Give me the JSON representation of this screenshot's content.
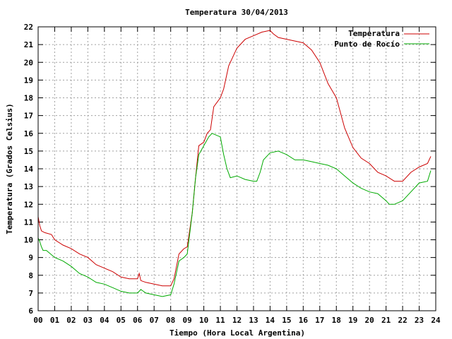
{
  "chart_data": {
    "type": "line",
    "title": "Temperatura 30/04/2013",
    "xlabel": "Tiempo (Hora Local Argentina)",
    "ylabel": "Temperatura (Grados Celsius)",
    "xlim": [
      0,
      24
    ],
    "ylim": [
      6,
      22
    ],
    "x_ticks": [
      "00",
      "01",
      "02",
      "03",
      "04",
      "05",
      "06",
      "07",
      "08",
      "09",
      "10",
      "11",
      "12",
      "13",
      "14",
      "15",
      "16",
      "17",
      "18",
      "19",
      "20",
      "21",
      "22",
      "23",
      "24"
    ],
    "y_ticks": [
      6,
      7,
      8,
      9,
      10,
      11,
      12,
      13,
      14,
      15,
      16,
      17,
      18,
      19,
      20,
      21,
      22
    ],
    "grid": true,
    "legend_position": "top-right",
    "series": [
      {
        "name": "Temperatura",
        "color": "#cc0000",
        "x": [
          0.0,
          0.1,
          0.2,
          0.4,
          0.8,
          1.0,
          1.5,
          2.0,
          2.5,
          3.0,
          3.5,
          4.0,
          4.5,
          5.0,
          5.5,
          6.0,
          6.1,
          6.2,
          6.5,
          7.0,
          7.5,
          8.0,
          8.2,
          8.5,
          8.8,
          9.0,
          9.3,
          9.5,
          9.7,
          10.0,
          10.2,
          10.4,
          10.6,
          11.0,
          11.2,
          11.5,
          12.0,
          12.5,
          13.0,
          13.5,
          14.0,
          14.2,
          14.5,
          15.0,
          15.5,
          16.0,
          16.5,
          17.0,
          17.5,
          18.0,
          18.5,
          19.0,
          19.5,
          20.0,
          20.5,
          21.0,
          21.5,
          22.0,
          22.5,
          23.0,
          23.5,
          23.7
        ],
        "y": [
          11.3,
          10.8,
          10.5,
          10.4,
          10.3,
          10.0,
          9.7,
          9.5,
          9.2,
          9.0,
          8.6,
          8.4,
          8.2,
          7.9,
          7.8,
          7.8,
          8.1,
          7.7,
          7.6,
          7.5,
          7.4,
          7.4,
          7.8,
          9.2,
          9.5,
          9.6,
          11.5,
          13.5,
          15.3,
          15.5,
          16.0,
          16.2,
          17.5,
          18.0,
          18.5,
          19.8,
          20.8,
          21.3,
          21.5,
          21.7,
          21.8,
          21.6,
          21.4,
          21.3,
          21.2,
          21.1,
          20.7,
          20.0,
          18.8,
          18.0,
          16.3,
          15.2,
          14.6,
          14.3,
          13.8,
          13.6,
          13.3,
          13.3,
          13.8,
          14.1,
          14.3,
          14.7
        ]
      },
      {
        "name": "Punto de Rocío",
        "color": "#00aa00",
        "x": [
          0.0,
          0.1,
          0.2,
          0.3,
          0.5,
          1.0,
          1.5,
          2.0,
          2.5,
          3.0,
          3.5,
          4.0,
          4.5,
          5.0,
          5.5,
          6.0,
          6.2,
          6.5,
          7.0,
          7.5,
          8.0,
          8.2,
          8.5,
          8.8,
          9.0,
          9.3,
          9.5,
          9.7,
          10.0,
          10.3,
          10.5,
          11.0,
          11.2,
          11.4,
          11.6,
          12.0,
          12.5,
          13.0,
          13.2,
          13.4,
          13.6,
          14.0,
          14.5,
          15.0,
          15.5,
          16.0,
          16.5,
          17.0,
          17.5,
          18.0,
          18.5,
          19.0,
          19.5,
          20.0,
          20.5,
          21.0,
          21.2,
          21.5,
          22.0,
          22.5,
          23.0,
          23.5,
          23.7
        ],
        "y": [
          10.1,
          9.9,
          9.6,
          9.4,
          9.4,
          9.0,
          8.8,
          8.5,
          8.1,
          7.9,
          7.6,
          7.5,
          7.3,
          7.1,
          7.0,
          7.0,
          7.2,
          7.0,
          6.9,
          6.8,
          6.9,
          7.5,
          8.8,
          9.0,
          9.2,
          11.5,
          13.5,
          14.8,
          15.3,
          15.8,
          16.0,
          15.8,
          14.8,
          14.0,
          13.5,
          13.6,
          13.4,
          13.3,
          13.3,
          13.8,
          14.5,
          14.9,
          15.0,
          14.8,
          14.5,
          14.5,
          14.4,
          14.3,
          14.2,
          14.0,
          13.6,
          13.2,
          12.9,
          12.7,
          12.6,
          12.2,
          12.0,
          12.0,
          12.2,
          12.7,
          13.2,
          13.3,
          13.9
        ]
      }
    ]
  }
}
